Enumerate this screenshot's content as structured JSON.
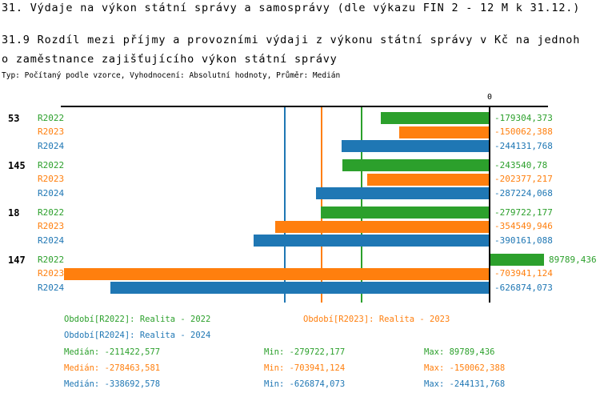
{
  "header": {
    "title": "31. Výdaje na výkon státní správy a samosprávy (dle výkazu FIN 2 - 12 M k 31.12.)",
    "subtitle_line1": "31.9 Rozdíl mezi příjmy a provozními výdaji z výkonu státní správy v Kč na jednoh",
    "subtitle_line2": "o zaměstnance zajišťujícího výkon státní správy",
    "meta": "Typ: Počítaný podle vzorce, Vyhodnocení: Absolutní hodnoty, Průměr: Medián"
  },
  "colors": {
    "r2022": "#2ca02c",
    "r2023": "#ff7f0e",
    "r2024": "#1f77b4",
    "axis": "#000000",
    "background": "#ffffff"
  },
  "chart_data": {
    "type": "bar",
    "orientation": "horizontal",
    "zero_tick_label": "0",
    "series_names": [
      "R2022",
      "R2023",
      "R2024"
    ],
    "series_colors": [
      "#2ca02c",
      "#ff7f0e",
      "#1f77b4"
    ],
    "groups": [
      {
        "label": "53",
        "values": [
          -179304.373,
          -150062.388,
          -244131.768
        ],
        "value_labels": [
          "-179304,373",
          "-150062,388",
          "-244131,768"
        ]
      },
      {
        "label": "145",
        "values": [
          -243540.78,
          -202377.217,
          -287224.068
        ],
        "value_labels": [
          "-243540,78",
          "-202377,217",
          "-287224,068"
        ]
      },
      {
        "label": "18",
        "values": [
          -279722.177,
          -354549.946,
          -390161.088
        ],
        "value_labels": [
          "-279722,177",
          "-354549,946",
          "-390161,088"
        ]
      },
      {
        "label": "147",
        "values": [
          89789.436,
          -703941.124,
          -626874.073
        ],
        "value_labels": [
          "89789,436",
          "-703941,124",
          "-626874,073"
        ]
      }
    ],
    "median_lines": [
      -211422.577,
      -278463.581,
      -338692.578
    ],
    "xlim": [
      -712000,
      130000
    ],
    "grid": "vertical median reference lines only",
    "legend_position": "bottom"
  },
  "legend": {
    "r2022": "Období[R2022]: Realita - 2022",
    "r2023": "Období[R2023]: Realita - 2023",
    "r2024": "Období[R2024]: Realita - 2024"
  },
  "stats": {
    "rows": [
      {
        "series": "R2022",
        "median": "Medián: -211422,577",
        "min": "Min: -279722,177",
        "max": "Max: 89789,436"
      },
      {
        "series": "R2023",
        "median": "Medián: -278463,581",
        "min": "Min: -703941,124",
        "max": "Max: -150062,388"
      },
      {
        "series": "R2024",
        "median": "Medián: -338692,578",
        "min": "Min: -626874,073",
        "max": "Max: -244131,768"
      }
    ]
  }
}
